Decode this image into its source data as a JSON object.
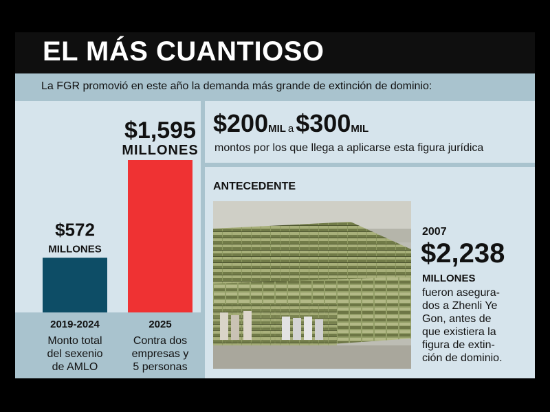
{
  "header": {
    "title": "EL MÁS CUANTIOSO",
    "subtitle": "La FGR promovió en este año la demanda más grande de extinción de dominio:"
  },
  "chart_data": {
    "type": "bar",
    "categories": [
      "2019-2024",
      "2025"
    ],
    "values": [
      572,
      1595
    ],
    "value_labels": [
      "$572",
      "$1,595"
    ],
    "unit_label": "MILLONES",
    "descriptions": [
      [
        "Monto total",
        "del sexenio",
        "de AMLO"
      ],
      [
        "Contra dos",
        "empresas y",
        "5 personas"
      ]
    ],
    "colors": [
      "#0d4d66",
      "#ef3233"
    ],
    "title": "",
    "xlabel": "",
    "ylabel": ""
  },
  "range": {
    "low": "$200",
    "low_unit": "MIL",
    "connector": "a",
    "high": "$300",
    "high_unit": "MIL",
    "description": "montos por los que llega a aplicarse esta figura jurídica"
  },
  "antecedente": {
    "label": "ANTECEDENTE",
    "year": "2007",
    "amount": "$2,238",
    "unit": "MILLONES",
    "text_lines": [
      "fueron asegura-",
      "dos a Zhenli Ye",
      "Gon, antes de",
      "que existiera la",
      "figura de extin-",
      "ción de dominio."
    ]
  }
}
